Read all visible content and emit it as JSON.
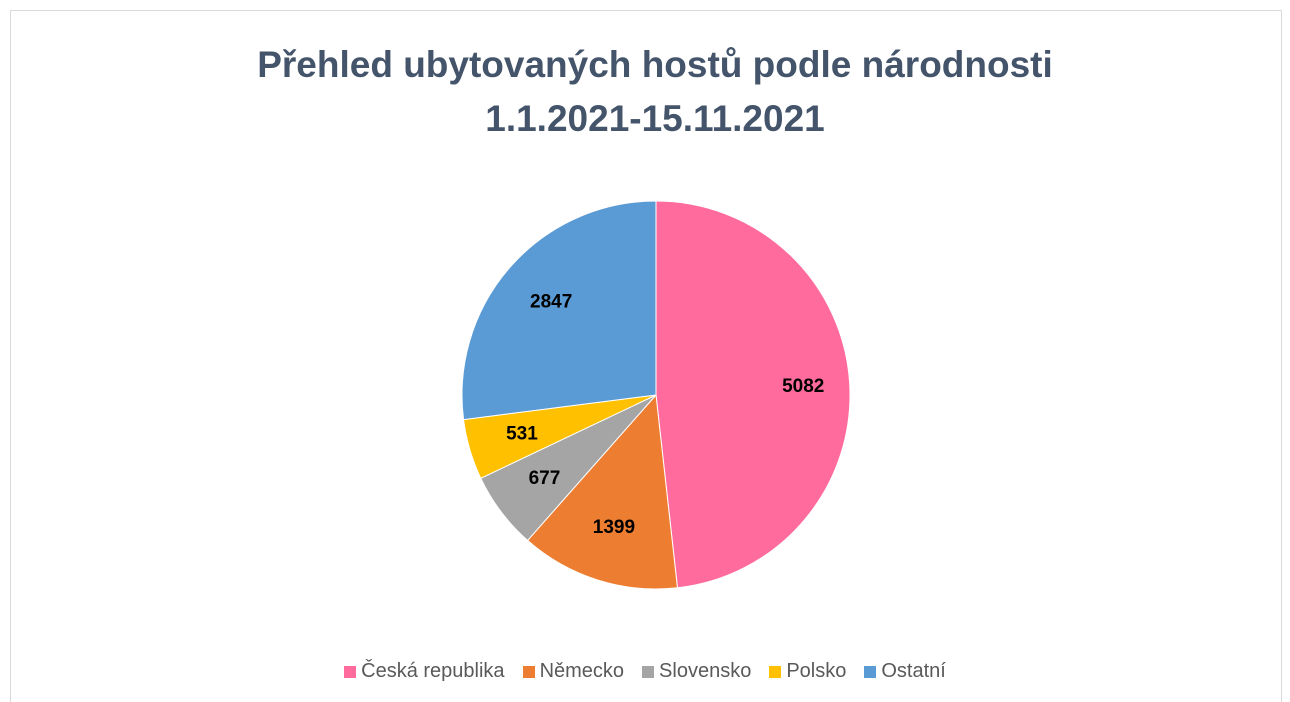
{
  "chart_data": {
    "type": "pie",
    "title": "Přehled ubytovaných hostů podle národnosti 1.1.2021-15.11.2021",
    "categories": [
      "Česká republika",
      "Německo",
      "Slovensko",
      "Polsko",
      "Ostatní"
    ],
    "values": [
      5082,
      1399,
      677,
      531,
      2847
    ],
    "colors": [
      "#ff6b9d",
      "#ed7d31",
      "#a5a5a5",
      "#ffc000",
      "#5b9bd5"
    ],
    "legend": "bottom"
  }
}
